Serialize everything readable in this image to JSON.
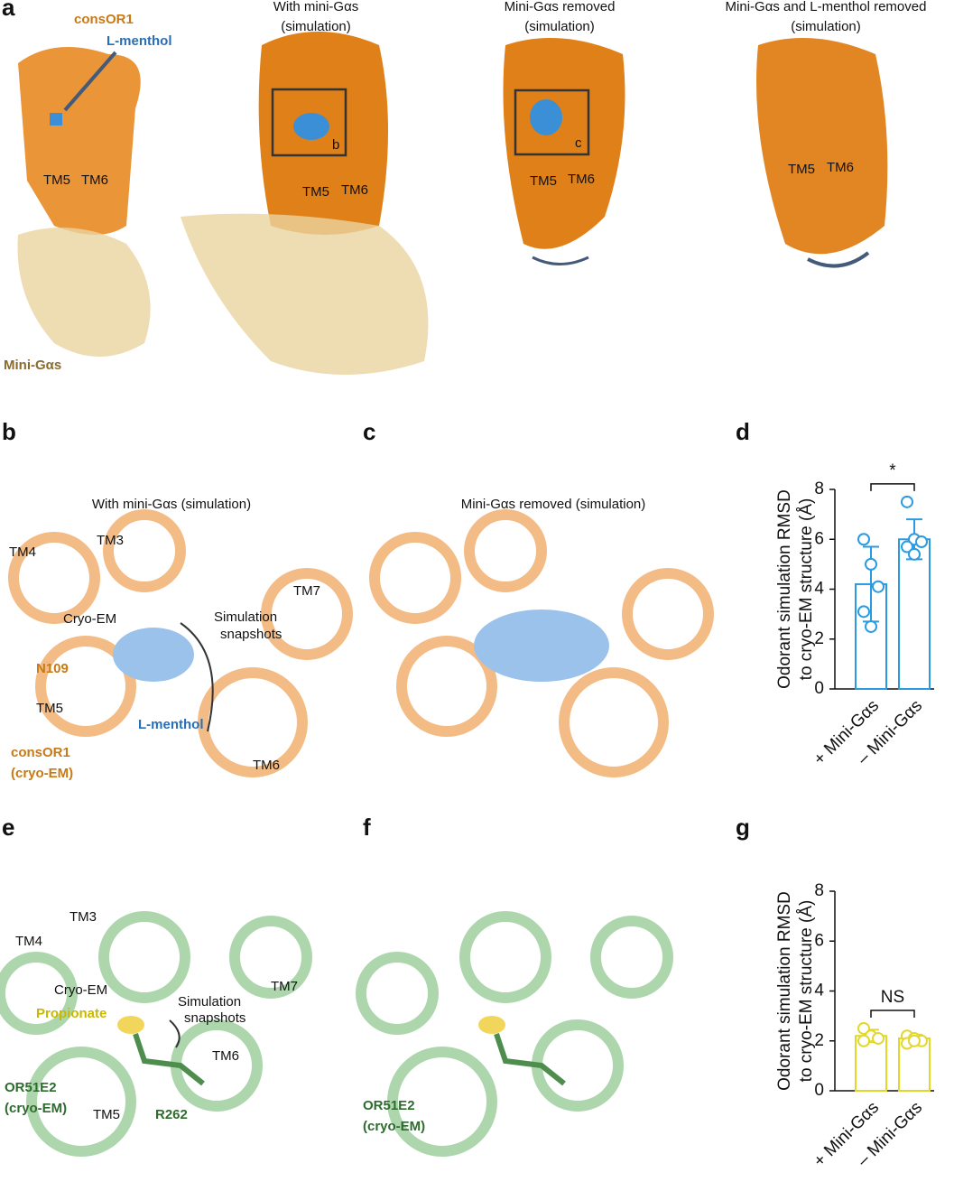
{
  "panels": {
    "a": {
      "label": "a",
      "consor1": "consOR1",
      "menthol": "L-menthol",
      "tm5": "TM5",
      "tm6": "TM6",
      "mini_gas": "Mini-Gαs",
      "titles": [
        [
          "With mini-Gαs",
          "(simulation)"
        ],
        [
          "Mini-Gαs removed",
          "(simulation)"
        ],
        [
          "Mini-Gαs and L-menthol removed",
          "(simulation)"
        ]
      ],
      "box_b": "b",
      "box_c": "c"
    },
    "b": {
      "label": "b",
      "title": "With mini-Gαs (simulation)",
      "tm4": "TM4",
      "tm3": "TM3",
      "tm7": "TM7",
      "cryo_em": "Cryo-EM",
      "snapshots": [
        "Simulation",
        "snapshots"
      ],
      "n109": "N109",
      "tm5": "TM5",
      "menthol": "L-menthol",
      "consor1": [
        "consOR1",
        "(cryo-EM)"
      ],
      "tm6": "TM6"
    },
    "c": {
      "label": "c",
      "title": "Mini-Gαs removed (simulation)"
    },
    "d": {
      "label": "d"
    },
    "e": {
      "label": "e",
      "tm3": "TM3",
      "tm4": "TM4",
      "tm7": "TM7",
      "cryo_em": "Cryo-EM",
      "propionate": "Propionate",
      "snapshots": [
        "Simulation",
        "snapshots"
      ],
      "tm6": "TM6",
      "or51e2": [
        "OR51E2",
        "(cryo-EM)"
      ],
      "tm5": "TM5",
      "r262": "R262"
    },
    "f": {
      "label": "f",
      "or51e2": [
        "OR51E2",
        "(cryo-EM)"
      ]
    },
    "g": {
      "label": "g"
    }
  },
  "chart_data": [
    {
      "type": "bar",
      "ylabel": [
        "Odorant simulation RMSD",
        "to cryo-EM structure (Å)"
      ],
      "categories": [
        "+ Mini-Gαs",
        "– Mini-Gαs"
      ],
      "values": [
        4.2,
        6.0
      ],
      "errors": [
        1.5,
        0.8
      ],
      "points": [
        [
          6.0,
          5.0,
          4.1,
          3.1,
          2.5
        ],
        [
          7.5,
          6.0,
          5.9,
          5.7,
          5.4
        ]
      ],
      "color": "#2a9be0",
      "ylim": [
        0,
        8
      ],
      "yticks": [
        0,
        2,
        4,
        6,
        8
      ],
      "annotation": "*"
    },
    {
      "type": "bar",
      "ylabel": [
        "Odorant simulation RMSD",
        "to cryo-EM structure (Å)"
      ],
      "categories": [
        "+ Mini-Gαs",
        "– Mini-Gαs"
      ],
      "values": [
        2.2,
        2.1
      ],
      "errors": [
        0.25,
        0.15
      ],
      "points": [
        [
          2.5,
          2.2,
          2.1,
          2.0
        ],
        [
          2.2,
          2.1,
          2.0,
          1.9,
          2.0
        ]
      ],
      "color": "#e3d82a",
      "ylim": [
        0,
        8
      ],
      "yticks": [
        0,
        2,
        4,
        6,
        8
      ],
      "annotation": "NS"
    }
  ]
}
